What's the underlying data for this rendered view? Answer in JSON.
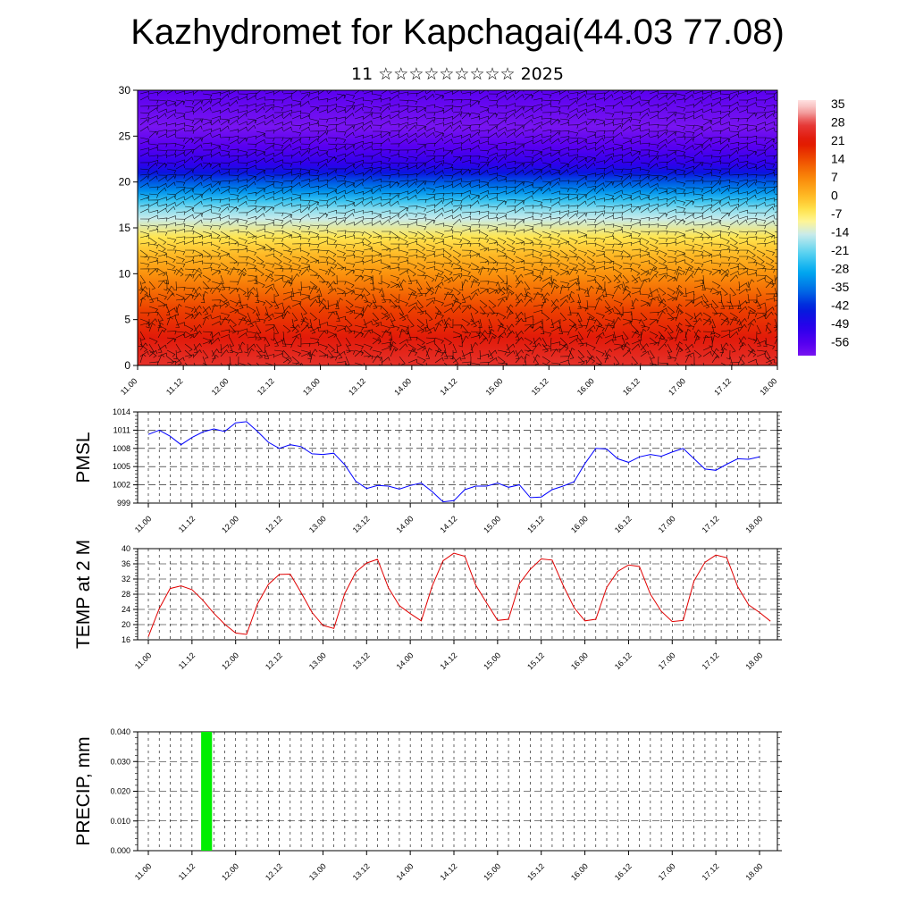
{
  "title": "Kazhydromet for Kapchagai(44.03 77.08)",
  "subtitle": "11 ☆☆☆☆☆☆☆☆☆ 2025",
  "colors": {
    "pmsl_line": "#0000ff",
    "temp_line": "#e00000",
    "precip_bar": "#00ee00",
    "barb": "#000000"
  },
  "time_labels": [
    "11.00",
    "11.12",
    "12.00",
    "12.12",
    "13.00",
    "13.12",
    "14.00",
    "14.12",
    "15.00",
    "15.12",
    "16.00",
    "16.12",
    "17.00",
    "17.12",
    "18.00"
  ],
  "chart_data": [
    {
      "type": "heatmap",
      "name": "cross-section",
      "ylim": [
        0,
        30
      ],
      "yticks": [
        "0",
        "5",
        "10",
        "15",
        "20",
        "25",
        "30"
      ],
      "colorbar_labels": [
        "35",
        "28",
        "21",
        "14",
        "7",
        "0",
        "-7",
        "-14",
        "-21",
        "-28",
        "-35",
        "-42",
        "-49",
        "-56"
      ],
      "colorbar_range": [
        -60,
        37
      ],
      "profile_levels": [
        0,
        3,
        6,
        8,
        10,
        12,
        14,
        16,
        17,
        18,
        19,
        20,
        21,
        22,
        24,
        26,
        28,
        30
      ],
      "profile_values": [
        26,
        22,
        16,
        11,
        6,
        1,
        -5,
        -14,
        -18,
        -24,
        -31,
        -37,
        -44,
        -50,
        -56,
        -60,
        -58,
        -56
      ],
      "wind_barbs": true
    },
    {
      "type": "line",
      "name": "PMSL",
      "ylabel": "PMSL",
      "ylim": [
        999,
        1014
      ],
      "yticks": [
        "999",
        "1002",
        "1005",
        "1008",
        "1011",
        "1014"
      ],
      "grid": true,
      "values": [
        1010.3,
        1011.0,
        1010.0,
        1008.6,
        1009.8,
        1010.7,
        1011.2,
        1010.8,
        1012.2,
        1012.4,
        1010.8,
        1009.0,
        1008.0,
        1008.6,
        1008.3,
        1007.1,
        1007.0,
        1007.2,
        1005.3,
        1002.6,
        1001.4,
        1001.9,
        1001.8,
        1001.3,
        1001.9,
        1002.3,
        1000.9,
        999.2,
        999.4,
        1001.2,
        1001.8,
        1001.8,
        1002.3,
        1001.6,
        1002.0,
        999.9,
        1000.0,
        1001.2,
        1001.8,
        1002.5,
        1005.5,
        1008.0,
        1007.9,
        1006.3,
        1005.7,
        1006.6,
        1007.0,
        1006.7,
        1007.4,
        1008.0,
        1006.3,
        1004.6,
        1004.4,
        1005.4,
        1006.3,
        1006.2,
        1006.6
      ],
      "x_step_hours": 3
    },
    {
      "type": "line",
      "name": "TEMP at 2 M",
      "ylabel": "TEMP at 2 M",
      "ylim": [
        16,
        40
      ],
      "yticks": [
        "16",
        "20",
        "24",
        "28",
        "32",
        "36",
        "40"
      ],
      "grid": true,
      "values": [
        16.8,
        24.2,
        29.5,
        30.2,
        29.2,
        26.4,
        23.0,
        20.1,
        17.8,
        17.4,
        25.4,
        30.6,
        33.2,
        33.3,
        28.4,
        23.2,
        19.8,
        19.0,
        28.2,
        33.8,
        36.2,
        37.2,
        29.7,
        25.0,
        22.9,
        21.0,
        30.1,
        36.8,
        38.8,
        38.0,
        30.4,
        25.7,
        21.1,
        21.4,
        30.8,
        34.6,
        37.3,
        37.0,
        30.4,
        24.5,
        21.0,
        21.4,
        29.8,
        34.0,
        35.7,
        35.3,
        28.0,
        23.5,
        20.8,
        21.1,
        31.5,
        36.4,
        38.3,
        37.6,
        30.0,
        25.2,
        23.2,
        20.9
      ],
      "x_step_hours": 3
    },
    {
      "type": "bar",
      "name": "PRECIP",
      "ylabel": "PRECIP, mm",
      "ylim": [
        0,
        0.04
      ],
      "yticks": [
        "0.000",
        "0.010",
        "0.020",
        "0.030",
        "0.040"
      ],
      "grid": true,
      "x_step_hours": 3,
      "bars": [
        {
          "index": 5,
          "value": 0.04
        }
      ]
    }
  ]
}
